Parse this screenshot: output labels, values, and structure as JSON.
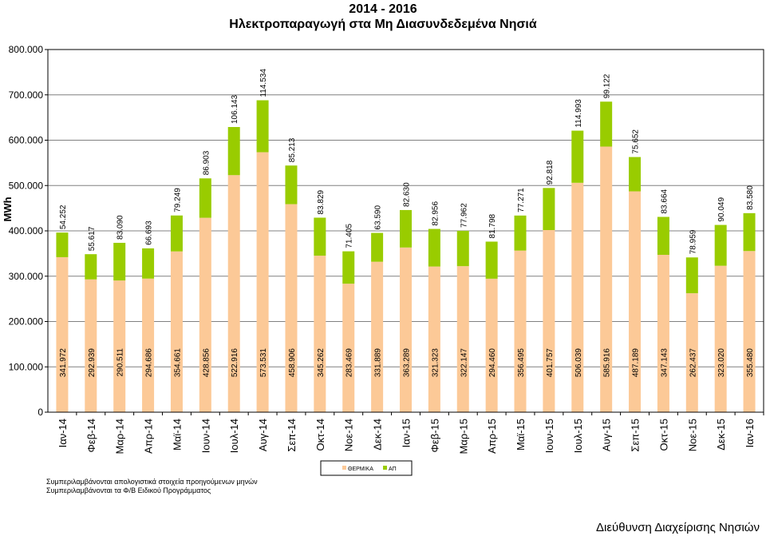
{
  "title": {
    "line1": "2014 - 2016",
    "line2": "Ηλεκτροπαραγωγή στα Μη Διασυνδεδεμένα Νησιά"
  },
  "chart_data": {
    "type": "bar",
    "stacked": true,
    "title": "2014 - 2016 Ηλεκτροπαραγωγή στα Μη Διασυνδεδεμένα Νησιά",
    "ylabel": "MWh",
    "xlabel": "",
    "ylim": [
      0,
      800000
    ],
    "yticks": [
      0,
      100000,
      200000,
      300000,
      400000,
      500000,
      600000,
      700000,
      800000
    ],
    "ytick_labels": [
      "0",
      "100.000",
      "200.000",
      "300.000",
      "400.000",
      "500.000",
      "600.000",
      "700.000",
      "800.000"
    ],
    "grid": true,
    "legend_position": "bottom",
    "categories": [
      "Ιαν-14",
      "Φεβ-14",
      "Μαρ-14",
      "Απρ-14",
      "Μαϊ-14",
      "Ιουν-14",
      "Ιουλ-14",
      "Αυγ-14",
      "Σεπ-14",
      "Οκτ-14",
      "Νοε-14",
      "Δεκ-14",
      "Ιαν-15",
      "Φεβ-15",
      "Μαρ-15",
      "Απρ-15",
      "Μαϊ-15",
      "Ιουν-15",
      "Ιουλ-15",
      "Αυγ-15",
      "Σεπ-15",
      "Οκτ-15",
      "Νοε-15",
      "Δεκ-15",
      "Ιαν-16"
    ],
    "series": [
      {
        "name": "ΘΕΡΜΙΚΑ",
        "color": "#fcc997",
        "values": [
          341972,
          292939,
          290511,
          294686,
          354661,
          428856,
          522916,
          573531,
          458906,
          345262,
          283469,
          331889,
          363289,
          321323,
          322147,
          294460,
          356495,
          401757,
          506039,
          585916,
          487189,
          347143,
          262437,
          323020,
          355480
        ],
        "labels": [
          "341.972",
          "292.939",
          "290.511",
          "294.686",
          "354.661",
          "428.856",
          "522.916",
          "573.531",
          "458.906",
          "345.262",
          "283.469",
          "331.889",
          "363.289",
          "321.323",
          "322.147",
          "294.460",
          "356.495",
          "401.757",
          "506.039",
          "585.916",
          "487.189",
          "347.143",
          "262.437",
          "323.020",
          "355.480"
        ]
      },
      {
        "name": "ΑΠ",
        "color": "#99cc00",
        "values": [
          54252,
          55617,
          83090,
          66693,
          79249,
          86903,
          106143,
          114534,
          85213,
          83829,
          71405,
          63590,
          82630,
          82956,
          77962,
          81798,
          77271,
          92818,
          114993,
          99122,
          75652,
          83664,
          78959,
          90049,
          83580
        ],
        "labels": [
          "54.252",
          "55.617",
          "83.090",
          "66.693",
          "79.249",
          "86.903",
          "106.143",
          "114.534",
          "85.213",
          "83.829",
          "71.405",
          "63.590",
          "82.630",
          "82.956",
          "77.962",
          "81.798",
          "77.271",
          "92.818",
          "114.993",
          "99.122",
          "75.652",
          "83.664",
          "78.959",
          "90.049",
          "83.580"
        ]
      }
    ],
    "colors": {
      "border": "#000000",
      "grid": "#808080"
    }
  },
  "footnotes": {
    "line1": "Συμπεριλαμβάνονται απολογιστικά στοιχεία προηγούμενων μηνών",
    "line2": "Συμπεριλαμβάνονται τα Φ/Β Ειδικού Προγράμματος"
  },
  "footer": {
    "department": "Διεύθυνση Διαχείρισης Νησιών"
  }
}
